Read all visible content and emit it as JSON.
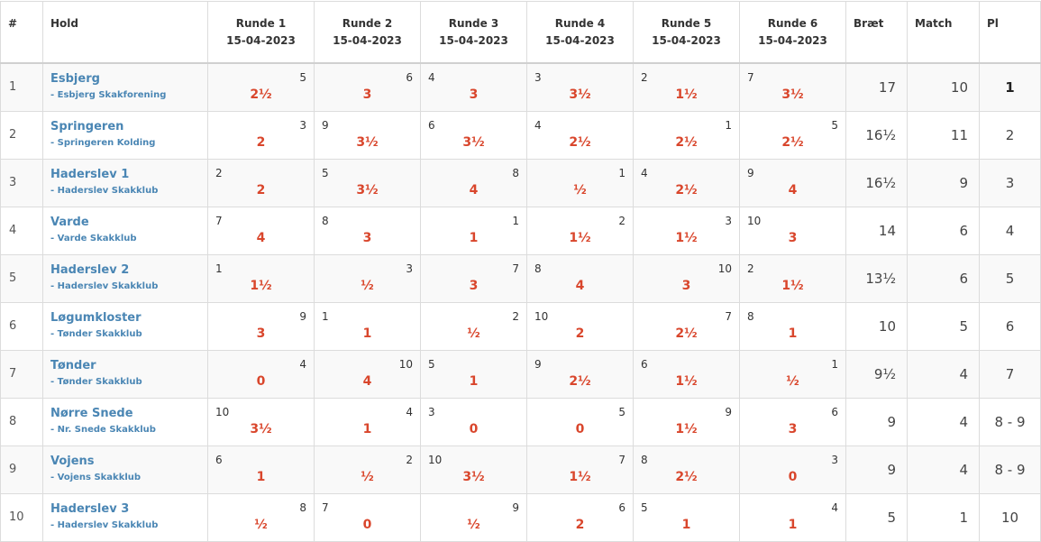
{
  "headers": {
    "num": "#",
    "team": "Hold",
    "rounds": [
      {
        "label": "Runde 1",
        "date": "15-04-2023"
      },
      {
        "label": "Runde 2",
        "date": "15-04-2023"
      },
      {
        "label": "Runde 3",
        "date": "15-04-2023"
      },
      {
        "label": "Runde 4",
        "date": "15-04-2023"
      },
      {
        "label": "Runde 5",
        "date": "15-04-2023"
      },
      {
        "label": "Runde 6",
        "date": "15-04-2023"
      }
    ],
    "board": "Bræt",
    "match": "Match",
    "place": "Pl"
  },
  "rows": [
    {
      "num": "1",
      "name": "Esbjerg",
      "club": "- Esbjerg Skakforening",
      "rounds": [
        {
          "opp": "5",
          "side": "right",
          "score": "2½"
        },
        {
          "opp": "6",
          "side": "right",
          "score": "3"
        },
        {
          "opp": "4",
          "side": "left",
          "score": "3"
        },
        {
          "opp": "3",
          "side": "left",
          "score": "3½"
        },
        {
          "opp": "2",
          "side": "left",
          "score": "1½"
        },
        {
          "opp": "7",
          "side": "left",
          "score": "3½"
        }
      ],
      "board": "17",
      "match": "10",
      "place": "1"
    },
    {
      "num": "2",
      "name": "Springeren",
      "club": "- Springeren Kolding",
      "rounds": [
        {
          "opp": "3",
          "side": "right",
          "score": "2"
        },
        {
          "opp": "9",
          "side": "left",
          "score": "3½"
        },
        {
          "opp": "6",
          "side": "left",
          "score": "3½"
        },
        {
          "opp": "4",
          "side": "left",
          "score": "2½"
        },
        {
          "opp": "1",
          "side": "right",
          "score": "2½"
        },
        {
          "opp": "5",
          "side": "right",
          "score": "2½"
        }
      ],
      "board": "16½",
      "match": "11",
      "place": "2"
    },
    {
      "num": "3",
      "name": "Haderslev 1",
      "club": "- Haderslev Skakklub",
      "rounds": [
        {
          "opp": "2",
          "side": "left",
          "score": "2"
        },
        {
          "opp": "5",
          "side": "left",
          "score": "3½"
        },
        {
          "opp": "8",
          "side": "right",
          "score": "4"
        },
        {
          "opp": "1",
          "side": "right",
          "score": "½"
        },
        {
          "opp": "4",
          "side": "left",
          "score": "2½"
        },
        {
          "opp": "9",
          "side": "left",
          "score": "4"
        }
      ],
      "board": "16½",
      "match": "9",
      "place": "3"
    },
    {
      "num": "4",
      "name": "Varde",
      "club": "- Varde Skakklub",
      "rounds": [
        {
          "opp": "7",
          "side": "left",
          "score": "4"
        },
        {
          "opp": "8",
          "side": "left",
          "score": "3"
        },
        {
          "opp": "1",
          "side": "right",
          "score": "1"
        },
        {
          "opp": "2",
          "side": "right",
          "score": "1½"
        },
        {
          "opp": "3",
          "side": "right",
          "score": "1½"
        },
        {
          "opp": "10",
          "side": "left",
          "score": "3"
        }
      ],
      "board": "14",
      "match": "6",
      "place": "4"
    },
    {
      "num": "5",
      "name": "Haderslev 2",
      "club": "- Haderslev Skakklub",
      "rounds": [
        {
          "opp": "1",
          "side": "left",
          "score": "1½"
        },
        {
          "opp": "3",
          "side": "right",
          "score": "½"
        },
        {
          "opp": "7",
          "side": "right",
          "score": "3"
        },
        {
          "opp": "8",
          "side": "left",
          "score": "4"
        },
        {
          "opp": "10",
          "side": "right",
          "score": "3"
        },
        {
          "opp": "2",
          "side": "left",
          "score": "1½"
        }
      ],
      "board": "13½",
      "match": "6",
      "place": "5"
    },
    {
      "num": "6",
      "name": "Løgumkloster",
      "club": "- Tønder Skakklub",
      "rounds": [
        {
          "opp": "9",
          "side": "right",
          "score": "3"
        },
        {
          "opp": "1",
          "side": "left",
          "score": "1"
        },
        {
          "opp": "2",
          "side": "right",
          "score": "½"
        },
        {
          "opp": "10",
          "side": "left",
          "score": "2"
        },
        {
          "opp": "7",
          "side": "right",
          "score": "2½"
        },
        {
          "opp": "8",
          "side": "left",
          "score": "1"
        }
      ],
      "board": "10",
      "match": "5",
      "place": "6"
    },
    {
      "num": "7",
      "name": "Tønder",
      "club": "- Tønder Skakklub",
      "rounds": [
        {
          "opp": "4",
          "side": "right",
          "score": "0"
        },
        {
          "opp": "10",
          "side": "right",
          "score": "4"
        },
        {
          "opp": "5",
          "side": "left",
          "score": "1"
        },
        {
          "opp": "9",
          "side": "left",
          "score": "2½"
        },
        {
          "opp": "6",
          "side": "left",
          "score": "1½"
        },
        {
          "opp": "1",
          "side": "right",
          "score": "½"
        }
      ],
      "board": "9½",
      "match": "4",
      "place": "7"
    },
    {
      "num": "8",
      "name": "Nørre Snede",
      "club": "- Nr. Snede Skakklub",
      "rounds": [
        {
          "opp": "10",
          "side": "left",
          "score": "3½"
        },
        {
          "opp": "4",
          "side": "right",
          "score": "1"
        },
        {
          "opp": "3",
          "side": "left",
          "score": "0"
        },
        {
          "opp": "5",
          "side": "right",
          "score": "0"
        },
        {
          "opp": "9",
          "side": "right",
          "score": "1½"
        },
        {
          "opp": "6",
          "side": "right",
          "score": "3"
        }
      ],
      "board": "9",
      "match": "4",
      "place": "8 - 9"
    },
    {
      "num": "9",
      "name": "Vojens",
      "club": "- Vojens Skakklub",
      "rounds": [
        {
          "opp": "6",
          "side": "left",
          "score": "1"
        },
        {
          "opp": "2",
          "side": "right",
          "score": "½"
        },
        {
          "opp": "10",
          "side": "left",
          "score": "3½"
        },
        {
          "opp": "7",
          "side": "right",
          "score": "1½"
        },
        {
          "opp": "8",
          "side": "left",
          "score": "2½"
        },
        {
          "opp": "3",
          "side": "right",
          "score": "0"
        }
      ],
      "board": "9",
      "match": "4",
      "place": "8 - 9"
    },
    {
      "num": "10",
      "name": "Haderslev 3",
      "club": "- Haderslev Skakklub",
      "rounds": [
        {
          "opp": "8",
          "side": "right",
          "score": "½"
        },
        {
          "opp": "7",
          "side": "left",
          "score": "0"
        },
        {
          "opp": "9",
          "side": "right",
          "score": "½"
        },
        {
          "opp": "6",
          "side": "right",
          "score": "2"
        },
        {
          "opp": "5",
          "side": "left",
          "score": "1"
        },
        {
          "opp": "4",
          "side": "right",
          "score": "1"
        }
      ],
      "board": "5",
      "match": "1",
      "place": "10"
    }
  ]
}
